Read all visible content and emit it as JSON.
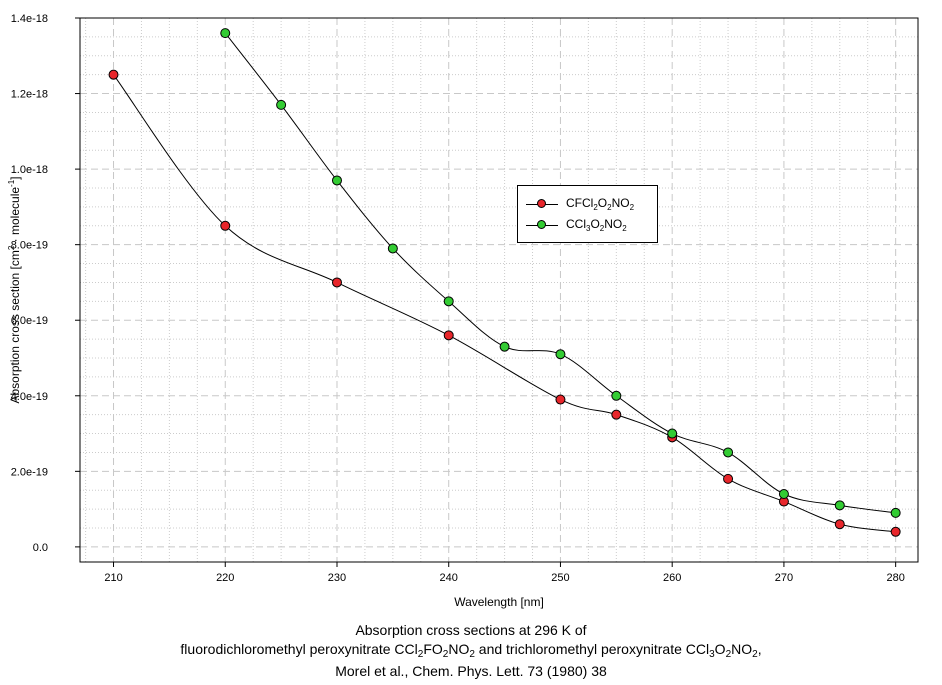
{
  "chart_data": {
    "type": "line",
    "title": "",
    "xlabel": "Wavelength [nm]",
    "ylabel": "Absorption cross section [cm",
    "ylabel_sup1": "2",
    "ylabel_mid": " · molecule",
    "ylabel_sup2": "-1",
    "ylabel_end": "]",
    "xlim": [
      207,
      282
    ],
    "ylim": [
      -4e-20,
      1.4e-18
    ],
    "x_ticks": [
      210,
      220,
      230,
      240,
      250,
      260,
      270,
      280
    ],
    "x_tick_labels": [
      "210",
      "220",
      "230",
      "240",
      "250",
      "260",
      "270",
      "280"
    ],
    "y_ticks": [
      0,
      2e-19,
      4e-19,
      6e-19,
      8e-19,
      1e-18,
      1.2e-18,
      1.4e-18
    ],
    "y_tick_labels": [
      "0.0",
      "2.0e-19",
      "4.0e-19",
      "6.0e-19",
      "8.0e-19",
      "1.0e-18",
      "1.2e-18",
      "1.4e-18"
    ],
    "grid": true,
    "legend_position": "center-right",
    "series": [
      {
        "name": "CFCl2O2NO2",
        "color": "#e8262b",
        "x": [
          210,
          220,
          230,
          240,
          250,
          255,
          260,
          265,
          270,
          275,
          280
        ],
        "y": [
          1.25e-18,
          8.5e-19,
          7e-19,
          5.6e-19,
          3.9e-19,
          3.5e-19,
          2.9e-19,
          1.8e-19,
          1.2e-19,
          6e-20,
          4e-20
        ]
      },
      {
        "name": "CCl3O2NO2",
        "color": "#33cc33",
        "x": [
          220,
          225,
          230,
          235,
          240,
          245,
          250,
          255,
          260,
          265,
          270,
          275,
          280
        ],
        "y": [
          1.36e-18,
          1.17e-18,
          9.7e-19,
          7.9e-19,
          6.5e-19,
          5.3e-19,
          5.1e-19,
          4e-19,
          3e-19,
          2.5e-19,
          1.4e-19,
          1.1e-19,
          9e-20
        ]
      }
    ]
  },
  "legend": {
    "s1": {
      "pre": "CFCl",
      "sub1": "2",
      "mid": "O",
      "sub2": "2",
      "end": "NO",
      "sub3": "2"
    },
    "s2": {
      "pre": "CCl",
      "sub1": "3",
      "mid": "O",
      "sub2": "2",
      "end": "NO",
      "sub3": "2"
    }
  },
  "caption": {
    "line1": "Absorption cross sections at 296 K of",
    "l2_a": "fluorodichloromethyl peroxynitrate CCl",
    "l2_s1": "2",
    "l2_b": "FO",
    "l2_s2": "2",
    "l2_c": "NO",
    "l2_s3": "2",
    "l2_d": " and trichloromethyl peroxynitrate CCl",
    "l2_s4": "3",
    "l2_e": "O",
    "l2_s5": "2",
    "l2_f": "NO",
    "l2_s6": "2",
    "l2_g": ",",
    "line3": "Morel et al., Chem. Phys. Lett. 73 (1980) 38"
  }
}
